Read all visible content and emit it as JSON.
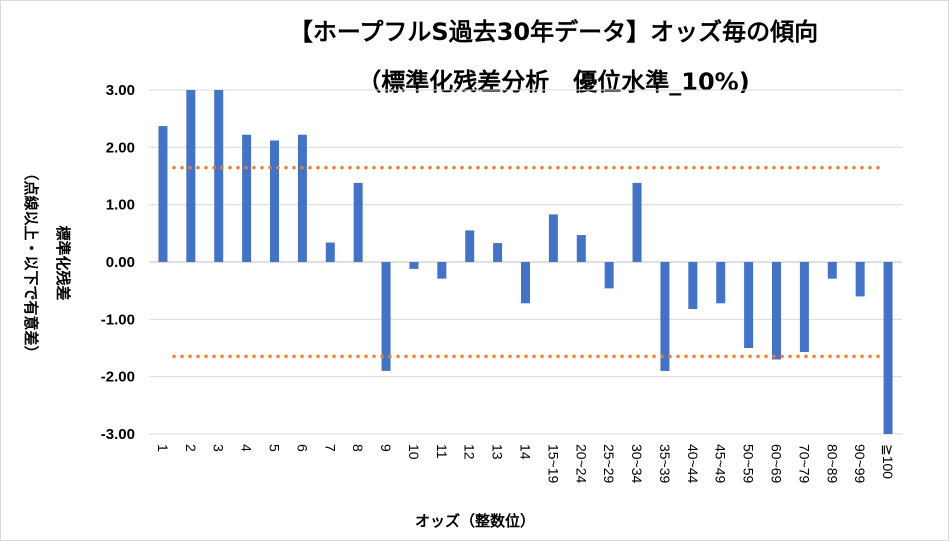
{
  "chart_data": {
    "type": "bar",
    "title": "【ホープフルS過去30年データ】オッズ毎の傾向",
    "subtitle": "（標準化残差分析　優位水準_10%)",
    "xlabel": "オッズ（整数位）",
    "ylabel": "標準化残差",
    "ylabel_note": "（点線以上・以下で有意差）",
    "ylim": [
      -3,
      3
    ],
    "yticks": [
      "3.00",
      "2.00",
      "1.00",
      "0.00",
      "-1.00",
      "-2.00",
      "-3.00"
    ],
    "categories": [
      "1",
      "2",
      "3",
      "4",
      "5",
      "6",
      "7",
      "8",
      "9",
      "10",
      "11",
      "12",
      "13",
      "14",
      "15~19",
      "20~24",
      "25~29",
      "30~34",
      "35~39",
      "40~44",
      "45~49",
      "50~59",
      "60~69",
      "70~79",
      "80~89",
      "90~99",
      "≧100"
    ],
    "values": [
      2.37,
      3.0,
      3.0,
      2.22,
      2.12,
      2.22,
      0.34,
      1.38,
      -1.9,
      -0.12,
      -0.29,
      0.55,
      0.33,
      -0.72,
      0.83,
      0.47,
      -0.46,
      1.38,
      -1.9,
      -0.82,
      -0.72,
      -1.5,
      -1.7,
      -1.57,
      -0.29,
      -0.6,
      -3.0
    ],
    "thresholds": [
      1.645,
      -1.645
    ],
    "colors": {
      "bar": "#4472c4",
      "threshold": "#ed7d31",
      "grid": "#d9d9d9"
    }
  }
}
